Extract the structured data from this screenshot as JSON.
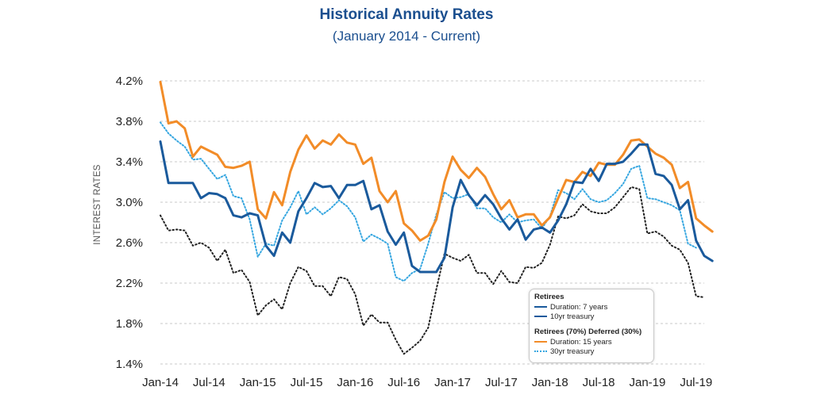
{
  "chart_data": {
    "type": "line",
    "title": "Historical Annuity Rates",
    "subtitle": "(January 2014 - Current)",
    "ylabel": "INTEREST RATES",
    "xlabel": "",
    "ylim": [
      1.4,
      4.2
    ],
    "yticks": [
      "4.2%",
      "3.8%",
      "3.4%",
      "3.0%",
      "2.6%",
      "2.2%",
      "1.8%",
      "1.4%"
    ],
    "ytick_values": [
      4.2,
      3.8,
      3.4,
      3.0,
      2.6,
      2.2,
      1.8,
      1.4
    ],
    "xticks": [
      "Jan-14",
      "Jul-14",
      "Jan-15",
      "Jul-15",
      "Jan-16",
      "Jul-16",
      "Jan-17",
      "Jul-17",
      "Jan-18",
      "Jul-18",
      "Jan-19",
      "Jul-19"
    ],
    "xtick_months": [
      0,
      6,
      12,
      18,
      24,
      30,
      36,
      42,
      48,
      54,
      60,
      66
    ],
    "x_range_months": [
      0,
      67
    ],
    "grid": "horizontal dashed",
    "legend_position": "bottom-right",
    "legend": {
      "group1_title": "Retirees",
      "group2_title": "Retirees (70%) Deferred (30%)"
    },
    "series": [
      {
        "name": "Duration: 7 years",
        "group": "Retirees",
        "color": "#1a5a9c",
        "style": "solid",
        "values": [
          3.6,
          3.19,
          3.19,
          3.19,
          3.19,
          3.04,
          3.09,
          3.08,
          3.04,
          2.87,
          2.85,
          2.89,
          2.87,
          2.57,
          2.47,
          2.7,
          2.6,
          2.91,
          3.04,
          3.19,
          3.15,
          3.16,
          3.04,
          3.17,
          3.17,
          3.21,
          2.93,
          2.97,
          2.71,
          2.58,
          2.7,
          2.37,
          2.31,
          2.31,
          2.31,
          2.45,
          2.95,
          3.22,
          3.07,
          2.97,
          3.07,
          2.98,
          2.84,
          2.73,
          2.83,
          2.63,
          2.73,
          2.75,
          2.7,
          2.82,
          2.98,
          3.2,
          3.19,
          3.33,
          3.21,
          3.38,
          3.38,
          3.4,
          3.48,
          3.57,
          3.57,
          3.28,
          3.26,
          3.17,
          2.93,
          3.02,
          2.62,
          2.47,
          2.42
        ]
      },
      {
        "name": "10yr treasury",
        "group": "Retirees",
        "color": "#1a5a9c",
        "style": "solid",
        "values": [
          2.87,
          2.72,
          2.73,
          2.72,
          2.57,
          2.6,
          2.55,
          2.42,
          2.53,
          2.3,
          2.33,
          2.21,
          1.88,
          1.98,
          2.04,
          1.94,
          2.2,
          2.36,
          2.32,
          2.17,
          2.17,
          2.07,
          2.26,
          2.24,
          2.09,
          1.78,
          1.89,
          1.81,
          1.81,
          1.64,
          1.5,
          1.56,
          1.63,
          1.76,
          2.14,
          2.49,
          2.45,
          2.42,
          2.48,
          2.3,
          2.3,
          2.19,
          2.32,
          2.21,
          2.2,
          2.36,
          2.35,
          2.4,
          2.58,
          2.86,
          2.84,
          2.87,
          2.98,
          2.91,
          2.89,
          2.89,
          2.95,
          3.05,
          3.15,
          3.13,
          2.69,
          2.71,
          2.66,
          2.57,
          2.53,
          2.4,
          2.07,
          2.06
        ]
      },
      {
        "name": "Duration: 15 years",
        "group": "Retirees (70%) Deferred (30%)",
        "color": "#f28c28",
        "style": "solid",
        "values": [
          4.19,
          3.78,
          3.8,
          3.73,
          3.45,
          3.55,
          3.51,
          3.47,
          3.35,
          3.34,
          3.36,
          3.4,
          2.93,
          2.84,
          3.1,
          2.97,
          3.3,
          3.52,
          3.66,
          3.53,
          3.61,
          3.57,
          3.67,
          3.59,
          3.57,
          3.38,
          3.44,
          3.11,
          3.0,
          3.11,
          2.79,
          2.72,
          2.62,
          2.67,
          2.83,
          3.2,
          3.45,
          3.32,
          3.24,
          3.34,
          3.25,
          3.08,
          2.93,
          3.02,
          2.85,
          2.88,
          2.88,
          2.77,
          2.85,
          3.04,
          3.22,
          3.2,
          3.3,
          3.26,
          3.39,
          3.37,
          3.37,
          3.47,
          3.61,
          3.62,
          3.55,
          3.48,
          3.44,
          3.37,
          3.14,
          3.2,
          2.84,
          2.77,
          2.71
        ]
      },
      {
        "name": "30yr treasury",
        "group": "Retirees (70%) Deferred (30%)",
        "color": "#35a6e0",
        "style": "dotted",
        "values": [
          3.79,
          3.68,
          3.61,
          3.55,
          3.42,
          3.43,
          3.33,
          3.23,
          3.27,
          3.06,
          3.04,
          2.83,
          2.46,
          2.59,
          2.57,
          2.82,
          2.95,
          3.11,
          2.88,
          2.95,
          2.88,
          2.94,
          3.02,
          2.96,
          2.85,
          2.61,
          2.68,
          2.64,
          2.59,
          2.26,
          2.22,
          2.3,
          2.34,
          2.59,
          2.88,
          3.1,
          3.04,
          3.05,
          3.08,
          2.94,
          2.94,
          2.85,
          2.8,
          2.88,
          2.8,
          2.82,
          2.83,
          2.74,
          2.86,
          3.12,
          3.09,
          3.03,
          3.13,
          3.03,
          3.0,
          3.02,
          3.09,
          3.18,
          3.33,
          3.36,
          3.04,
          3.03,
          3.0,
          2.97,
          2.92,
          2.59,
          2.55
        ]
      }
    ]
  }
}
